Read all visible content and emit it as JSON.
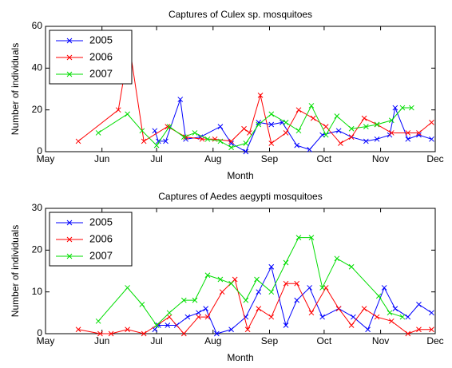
{
  "chart_data": [
    {
      "type": "line",
      "title": "Captures of Culex sp. mosquitoes",
      "xlabel": "Month",
      "ylabel": "Number of individuals",
      "xlim": [
        0,
        214
      ],
      "xticks": [
        {
          "value": 0,
          "label": "May"
        },
        {
          "value": 31,
          "label": "Jun"
        },
        {
          "value": 61,
          "label": "Jul"
        },
        {
          "value": 92,
          "label": "Aug"
        },
        {
          "value": 123,
          "label": "Sep"
        },
        {
          "value": 153,
          "label": "Oct"
        },
        {
          "value": 184,
          "label": "Nov"
        },
        {
          "value": 214,
          "label": "Dec"
        }
      ],
      "ylim": [
        0,
        60
      ],
      "yticks": [
        0,
        20,
        40,
        60
      ],
      "legend": "upper-left",
      "series": [
        {
          "name": "2005",
          "color": "#0000ff",
          "x": [
            60,
            62,
            66,
            74,
            77,
            85,
            96,
            102,
            110,
            117,
            124,
            130,
            138,
            145,
            152,
            161,
            168,
            176,
            182,
            189,
            192,
            199,
            205,
            212
          ],
          "values": [
            10,
            5,
            5,
            25,
            6,
            7,
            12,
            4,
            0,
            14,
            13,
            14,
            3,
            1,
            8,
            10,
            7,
            5,
            6,
            8,
            21,
            6,
            8,
            6
          ]
        },
        {
          "name": "2006",
          "color": "#ff0000",
          "x": [
            18,
            40,
            46,
            54,
            67,
            77,
            86,
            93,
            102,
            109,
            112,
            118,
            124,
            132,
            139,
            147,
            154,
            162,
            168,
            175,
            182,
            190,
            199,
            205,
            212
          ],
          "values": [
            5,
            20,
            51,
            5,
            12,
            7,
            6,
            6,
            5,
            11,
            9,
            27,
            4,
            9,
            20,
            16,
            12,
            4,
            7,
            16,
            13,
            9,
            9,
            9,
            14
          ]
        },
        {
          "name": "2007",
          "color": "#00dd00",
          "x": [
            29,
            45,
            53,
            61,
            68,
            76,
            82,
            89,
            96,
            102,
            110,
            117,
            124,
            132,
            139,
            146,
            154,
            160,
            168,
            176,
            182,
            190,
            196,
            201
          ],
          "values": [
            9,
            18,
            10,
            3,
            12,
            7,
            9,
            6,
            5,
            2,
            4,
            13,
            18,
            14,
            10,
            22,
            8,
            17,
            11,
            12,
            13,
            15,
            21,
            21
          ]
        }
      ]
    },
    {
      "type": "line",
      "title": "Captures of Aedes aegypti mosquitoes",
      "xlabel": "Month",
      "ylabel": "Number of individuals",
      "xlim": [
        0,
        214
      ],
      "xticks": [
        {
          "value": 0,
          "label": "May"
        },
        {
          "value": 31,
          "label": "Jun"
        },
        {
          "value": 61,
          "label": "Jul"
        },
        {
          "value": 92,
          "label": "Aug"
        },
        {
          "value": 123,
          "label": "Sep"
        },
        {
          "value": 153,
          "label": "Oct"
        },
        {
          "value": 184,
          "label": "Nov"
        },
        {
          "value": 214,
          "label": "Dec"
        }
      ],
      "ylim": [
        0,
        30
      ],
      "yticks": [
        0,
        10,
        20,
        30
      ],
      "legend": "upper-left",
      "series": [
        {
          "name": "2005",
          "color": "#0000ff",
          "x": [
            60,
            62,
            67,
            72,
            78,
            84,
            88,
            94,
            102,
            110,
            117,
            124,
            132,
            138,
            145,
            152,
            161,
            169,
            177,
            186,
            192,
            199,
            205,
            212
          ],
          "values": [
            1,
            2,
            2,
            2,
            4,
            5,
            6,
            0,
            1,
            4,
            10,
            16,
            2,
            8,
            11,
            4,
            6,
            4,
            1,
            11,
            6,
            4,
            7,
            5
          ]
        },
        {
          "name": "2006",
          "color": "#ff0000",
          "x": [
            18,
            30,
            36,
            45,
            54,
            68,
            76,
            84,
            89,
            97,
            104,
            111,
            117,
            124,
            132,
            138,
            146,
            154,
            161,
            168,
            175,
            182,
            190,
            199,
            205,
            212
          ],
          "values": [
            1,
            0,
            0,
            1,
            0,
            4,
            0,
            4,
            4,
            10,
            13,
            1,
            6,
            4,
            12,
            12,
            5,
            11,
            6,
            2,
            6,
            4,
            3,
            0,
            1,
            1
          ]
        },
        {
          "name": "2007",
          "color": "#00dd00",
          "x": [
            29,
            45,
            53,
            61,
            68,
            76,
            82,
            89,
            96,
            102,
            110,
            116,
            124,
            132,
            139,
            146,
            152,
            160,
            168,
            183,
            189,
            196
          ],
          "values": [
            3,
            11,
            7,
            2,
            5,
            8,
            8,
            14,
            13,
            12,
            8,
            13,
            10,
            17,
            23,
            23,
            11,
            18,
            16,
            9,
            5,
            4
          ]
        }
      ]
    }
  ]
}
